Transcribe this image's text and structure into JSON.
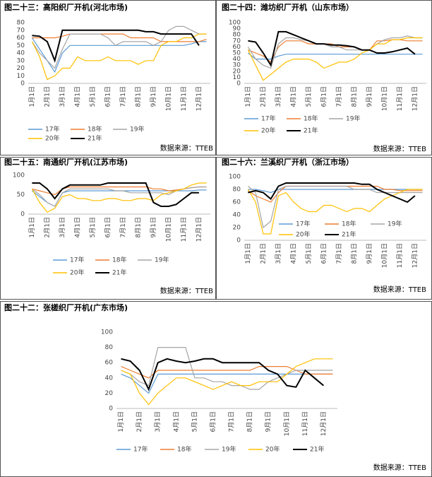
{
  "chart_data": [
    {
      "type": "line",
      "title": "图二十三：高阳织厂开机(河北市场)",
      "source": "数据来源：TTEB",
      "categories": [
        "1月1日",
        null,
        "2月1日",
        null,
        "3月1日",
        null,
        "4月1日",
        null,
        "5月1日",
        null,
        "6月1日",
        null,
        "7月1日",
        null,
        "8月1日",
        null,
        "9月1日",
        null,
        "10月1日",
        null,
        "11月1日",
        null,
        "12月1日",
        null
      ],
      "ylim": [
        0,
        80
      ],
      "yticks": [
        0,
        10,
        20,
        30,
        40,
        50,
        60,
        70,
        80
      ],
      "grid": false,
      "series": [
        {
          "name": "17年",
          "color": "#5b9bd5",
          "values": [
            60,
            45,
            30,
            15,
            40,
            50,
            50,
            50,
            50,
            50,
            50,
            50,
            50,
            50,
            50,
            50,
            50,
            50,
            50,
            50,
            50,
            52,
            55,
            55
          ]
        },
        {
          "name": "18年",
          "color": "#ed7d31",
          "values": [
            60,
            60,
            60,
            60,
            62,
            65,
            65,
            65,
            65,
            65,
            65,
            65,
            65,
            60,
            60,
            60,
            60,
            55,
            55,
            55,
            55,
            55,
            55,
            58
          ]
        },
        {
          "name": "19年",
          "color": "#a5a5a5",
          "values": [
            55,
            40,
            30,
            20,
            45,
            65,
            65,
            65,
            65,
            65,
            60,
            50,
            55,
            55,
            55,
            55,
            50,
            55,
            70,
            75,
            75,
            70,
            65,
            65
          ]
        },
        {
          "name": "20年",
          "color": "#ffc000",
          "values": [
            55,
            35,
            5,
            10,
            20,
            20,
            35,
            30,
            30,
            30,
            35,
            30,
            30,
            30,
            25,
            30,
            30,
            50,
            55,
            55,
            60,
            60,
            65,
            65
          ]
        },
        {
          "name": "21年",
          "color": "#000000",
          "values": [
            63,
            62,
            55,
            30,
            70,
            70,
            70,
            70,
            70,
            70,
            70,
            70,
            70,
            70,
            70,
            68,
            68,
            65,
            65,
            65,
            65,
            65,
            50,
            null
          ]
        }
      ]
    },
    {
      "type": "line",
      "title": "图二十四：潍坊织厂开机（山东市场）",
      "source": "数据来源：TTEB",
      "categories": [
        "1月1日",
        null,
        "2月1日",
        null,
        "3月1日",
        null,
        "4月1日",
        null,
        "5月1日",
        null,
        "6月1日",
        null,
        "7月1日",
        null,
        "8月1日",
        null,
        "9月1日",
        null,
        "10月1日",
        null,
        "11月1日",
        null,
        "12月1日",
        null
      ],
      "ylim": [
        0,
        100
      ],
      "yticks": [
        0,
        10,
        20,
        30,
        40,
        50,
        60,
        70,
        80,
        90,
        100
      ],
      "grid": false,
      "series": [
        {
          "name": "17年",
          "color": "#5b9bd5",
          "values": [
            50,
            40,
            40,
            40,
            45,
            48,
            48,
            48,
            48,
            48,
            48,
            48,
            48,
            48,
            48,
            48,
            48,
            48,
            48,
            48,
            48,
            48,
            48,
            48
          ]
        },
        {
          "name": "18年",
          "color": "#ed7d31",
          "values": [
            55,
            50,
            45,
            35,
            60,
            70,
            70,
            70,
            65,
            65,
            65,
            65,
            60,
            60,
            60,
            55,
            55,
            70,
            70,
            72,
            72,
            70,
            70,
            70
          ]
        },
        {
          "name": "19年",
          "color": "#a5a5a5",
          "values": [
            60,
            40,
            30,
            25,
            65,
            75,
            75,
            72,
            70,
            65,
            65,
            60,
            60,
            55,
            55,
            55,
            55,
            65,
            72,
            75,
            75,
            78,
            75,
            75
          ]
        },
        {
          "name": "20年",
          "color": "#ffc000",
          "values": [
            55,
            30,
            5,
            15,
            25,
            35,
            40,
            40,
            40,
            35,
            25,
            30,
            35,
            35,
            40,
            50,
            55,
            65,
            65,
            72,
            72,
            75,
            75,
            75
          ]
        },
        {
          "name": "21年",
          "color": "#000000",
          "values": [
            70,
            68,
            50,
            30,
            85,
            85,
            80,
            75,
            70,
            65,
            65,
            63,
            63,
            62,
            60,
            55,
            55,
            50,
            50,
            52,
            55,
            58,
            48,
            null
          ]
        }
      ]
    },
    {
      "type": "line",
      "title": "图二十五：南通织厂开机(江苏市场)",
      "source": "数据来源：TTEB",
      "categories": [
        "1月1日",
        null,
        "2月1日",
        null,
        "3月1日",
        null,
        "4月1日",
        null,
        "5月1日",
        null,
        "6月1日",
        null,
        "7月1日",
        null,
        "8月1日",
        null,
        "9月1日",
        null,
        "10月1日",
        null,
        "11月1日",
        null,
        "12月1日",
        null
      ],
      "ylim": [
        0,
        100
      ],
      "yticks": [
        0,
        50,
        100
      ],
      "grid": false,
      "series": [
        {
          "name": "17年",
          "color": "#5b9bd5",
          "values": [
            60,
            45,
            30,
            20,
            55,
            60,
            60,
            60,
            60,
            60,
            60,
            60,
            60,
            60,
            60,
            60,
            60,
            60,
            60,
            60,
            60,
            60,
            62,
            62
          ]
        },
        {
          "name": "18年",
          "color": "#ed7d31",
          "values": [
            65,
            60,
            55,
            50,
            65,
            70,
            70,
            70,
            70,
            70,
            70,
            70,
            70,
            70,
            70,
            70,
            65,
            65,
            60,
            62,
            65,
            68,
            70,
            70
          ]
        },
        {
          "name": "19年",
          "color": "#a5a5a5",
          "values": [
            65,
            50,
            30,
            20,
            55,
            65,
            65,
            65,
            65,
            65,
            65,
            60,
            60,
            55,
            55,
            55,
            55,
            55,
            50,
            60,
            65,
            68,
            70,
            70
          ]
        },
        {
          "name": "20年",
          "color": "#ffc000",
          "values": [
            65,
            30,
            5,
            15,
            45,
            50,
            40,
            40,
            35,
            35,
            40,
            40,
            35,
            35,
            40,
            40,
            35,
            50,
            55,
            60,
            65,
            75,
            80,
            80
          ]
        },
        {
          "name": "21年",
          "color": "#000000",
          "values": [
            80,
            80,
            65,
            40,
            65,
            75,
            75,
            75,
            75,
            75,
            80,
            80,
            80,
            80,
            80,
            80,
            30,
            20,
            20,
            25,
            40,
            55,
            55,
            null
          ]
        }
      ]
    },
    {
      "type": "line",
      "title": "图二十六：兰溪织厂开机（浙江市场）",
      "source": "数据来源：TTEB",
      "categories": [
        "1月1日",
        null,
        "2月1日",
        null,
        "3月1日",
        null,
        "4月1日",
        null,
        "5月1日",
        null,
        "6月1日",
        null,
        "7月1日",
        null,
        "8月1日",
        null,
        "9月1日",
        null,
        "10月1日",
        null,
        "11月1日",
        null,
        "12月1日",
        null
      ],
      "ylim": [
        0,
        100
      ],
      "yticks": [
        0,
        20,
        40,
        60,
        80,
        100
      ],
      "grid": false,
      "series": [
        {
          "name": "17年",
          "color": "#5b9bd5",
          "values": [
            80,
            80,
            78,
            75,
            80,
            80,
            80,
            80,
            80,
            80,
            80,
            80,
            80,
            80,
            80,
            80,
            80,
            80,
            80,
            80,
            80,
            80,
            80,
            80
          ]
        },
        {
          "name": "18年",
          "color": "#ed7d31",
          "values": [
            78,
            70,
            65,
            60,
            75,
            85,
            85,
            85,
            85,
            85,
            85,
            85,
            85,
            85,
            85,
            85,
            85,
            85,
            80,
            80,
            78,
            78,
            78,
            78
          ]
        },
        {
          "name": "19年",
          "color": "#a5a5a5",
          "values": [
            85,
            75,
            20,
            30,
            80,
            85,
            85,
            85,
            85,
            85,
            85,
            85,
            85,
            85,
            80,
            80,
            80,
            75,
            75,
            75,
            75,
            75,
            75,
            75
          ]
        },
        {
          "name": "20年",
          "color": "#ffc000",
          "values": [
            80,
            60,
            10,
            10,
            70,
            75,
            60,
            50,
            45,
            45,
            55,
            55,
            50,
            45,
            50,
            50,
            45,
            55,
            65,
            70,
            75,
            80,
            80,
            80
          ]
        },
        {
          "name": "21年",
          "color": "#000000",
          "values": [
            75,
            78,
            75,
            65,
            85,
            90,
            90,
            90,
            90,
            90,
            90,
            90,
            90,
            90,
            90,
            88,
            88,
            80,
            75,
            70,
            65,
            60,
            70,
            null
          ]
        }
      ]
    },
    {
      "type": "line",
      "title": "图二十二：张槎织厂开机(广东市场)",
      "source": "数据来源：TTEB",
      "categories": [
        "1月1日",
        null,
        "2月1日",
        null,
        "3月1日",
        null,
        "4月1日",
        null,
        "5月1日",
        null,
        "6月1日",
        null,
        "7月1日",
        null,
        "8月1日",
        null,
        "9月1日",
        null,
        "10月1日",
        null,
        "11月1日",
        null,
        "12月1日",
        null
      ],
      "ylim": [
        0,
        100
      ],
      "yticks": [
        0,
        20,
        40,
        60,
        80,
        100
      ],
      "grid": false,
      "series": [
        {
          "name": "17年",
          "color": "#5b9bd5",
          "values": [
            45,
            40,
            30,
            20,
            45,
            45,
            45,
            45,
            45,
            45,
            45,
            45,
            45,
            45,
            45,
            45,
            45,
            45,
            45,
            45,
            45,
            45,
            45,
            45
          ]
        },
        {
          "name": "18年",
          "color": "#ed7d31",
          "values": [
            55,
            50,
            45,
            40,
            50,
            50,
            50,
            50,
            50,
            50,
            50,
            50,
            50,
            50,
            50,
            55,
            55,
            55,
            55,
            50,
            45,
            45,
            45,
            45
          ]
        },
        {
          "name": "19年",
          "color": "#a5a5a5",
          "values": [
            50,
            45,
            35,
            30,
            80,
            80,
            80,
            80,
            40,
            40,
            35,
            35,
            30,
            30,
            25,
            25,
            35,
            40,
            45,
            50,
            50,
            50,
            50,
            50
          ]
        },
        {
          "name": "20年",
          "color": "#ffc000",
          "values": [
            50,
            45,
            20,
            5,
            20,
            30,
            40,
            40,
            35,
            30,
            25,
            30,
            35,
            30,
            30,
            35,
            35,
            35,
            45,
            55,
            60,
            65,
            65,
            65
          ]
        },
        {
          "name": "21年",
          "color": "#000000",
          "values": [
            65,
            62,
            50,
            25,
            60,
            65,
            62,
            60,
            62,
            65,
            65,
            60,
            60,
            60,
            60,
            60,
            50,
            45,
            30,
            28,
            50,
            40,
            30,
            null
          ]
        }
      ]
    }
  ]
}
